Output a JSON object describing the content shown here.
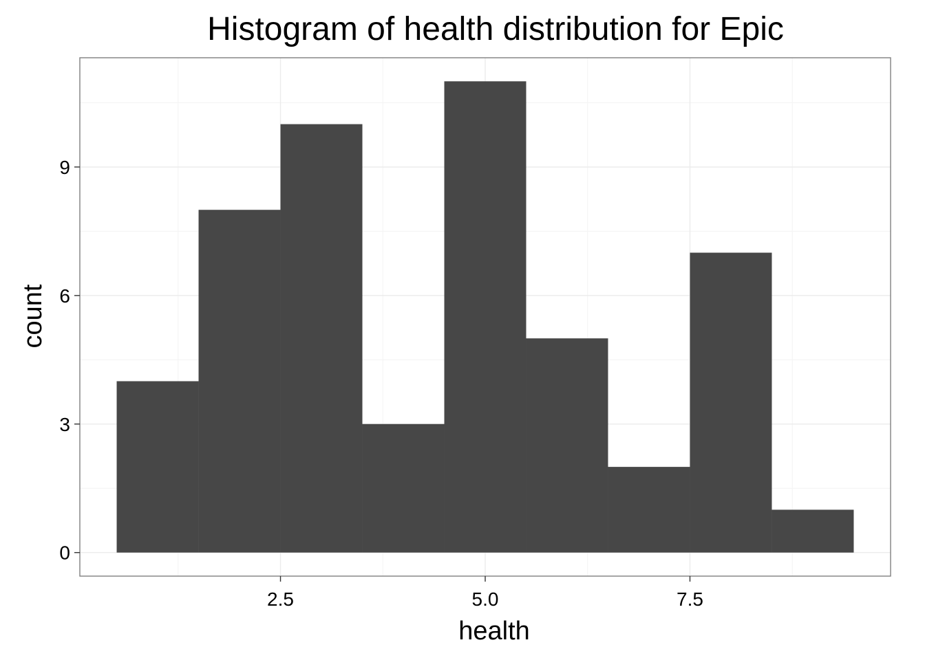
{
  "chart_data": {
    "type": "bar",
    "title": "Histogram of health distribution for Epic",
    "xlabel": "health",
    "ylabel": "count",
    "bins": [
      {
        "x_start": 0.5,
        "x_end": 1.5,
        "count": 4
      },
      {
        "x_start": 1.5,
        "x_end": 2.5,
        "count": 8
      },
      {
        "x_start": 2.5,
        "x_end": 3.5,
        "count": 10
      },
      {
        "x_start": 3.5,
        "x_end": 4.5,
        "count": 3
      },
      {
        "x_start": 4.5,
        "x_end": 5.5,
        "count": 11
      },
      {
        "x_start": 5.5,
        "x_end": 6.5,
        "count": 5
      },
      {
        "x_start": 6.5,
        "x_end": 7.5,
        "count": 2
      },
      {
        "x_start": 7.5,
        "x_end": 8.5,
        "count": 7
      },
      {
        "x_start": 8.5,
        "x_end": 9.5,
        "count": 1
      }
    ],
    "xlim": [
      0.05,
      9.95
    ],
    "ylim": [
      -0.55,
      11.55
    ],
    "x_ticks": [
      2.5,
      5.0,
      7.5
    ],
    "x_tick_labels": [
      "2.5",
      "5.0",
      "7.5"
    ],
    "x_minor_ticks": [
      1.25,
      3.75,
      6.25,
      8.75
    ],
    "y_ticks": [
      0,
      3,
      6,
      9
    ],
    "y_tick_labels": [
      "0",
      "3",
      "6",
      "9"
    ],
    "y_minor_ticks": [
      1.5,
      4.5,
      7.5,
      10.5
    ],
    "grid": true,
    "legend": "none",
    "bar_color": "#474747",
    "background_color": "#ffffff"
  }
}
